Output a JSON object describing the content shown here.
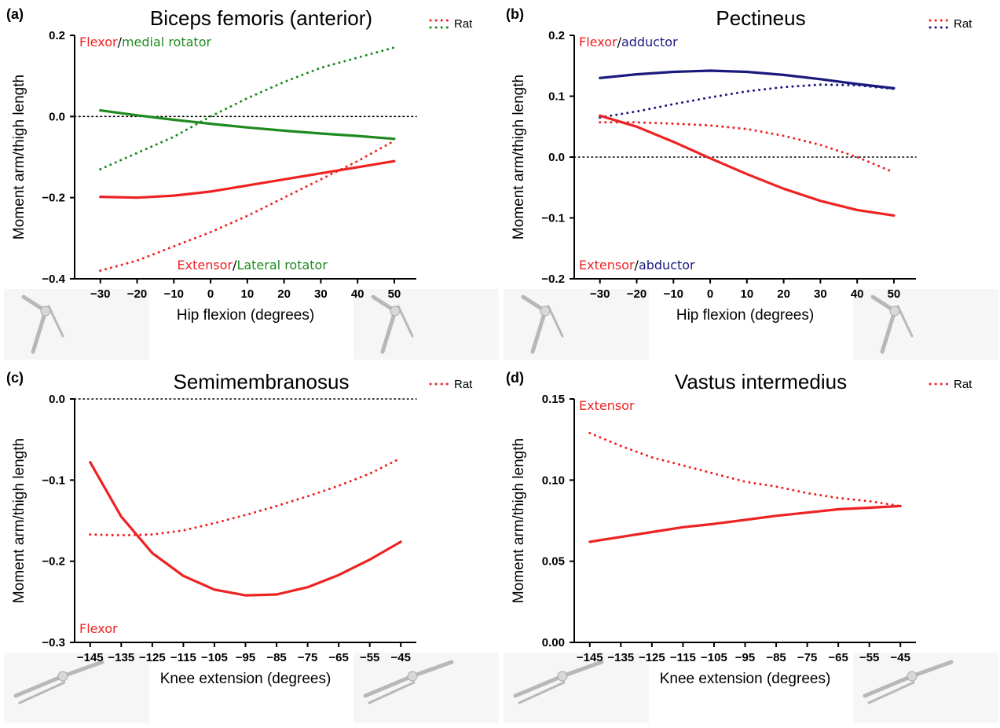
{
  "colors": {
    "red": "#ee2222",
    "green": "#1e8a1e",
    "navy": "#1a1a7e",
    "black": "#000000"
  },
  "chart_data": [
    {
      "id": "a",
      "type": "line",
      "panel_label": "(a)",
      "title": "Biceps femoris (anterior)",
      "xlabel": "Hip flexion (degrees)",
      "ylabel": "Moment arm/thigh length",
      "xlim": [
        -37,
        56
      ],
      "ylim": [
        -0.4,
        0.2
      ],
      "xticks": [
        -30,
        -20,
        -10,
        0,
        10,
        20,
        30,
        40,
        50
      ],
      "yticks": [
        -0.4,
        -0.2,
        0.0,
        0.2
      ],
      "ytick_labels": [
        "−0.4",
        "−0.2",
        "0.0",
        "0.2"
      ],
      "zero_line": true,
      "annotations": [
        {
          "position": "top-left",
          "parts": [
            {
              "text": "Flexor",
              "color": "#ee2222"
            },
            {
              "text": "/",
              "color": "#000000"
            },
            {
              "text": "medial rotator",
              "color": "#1e8a1e"
            }
          ]
        },
        {
          "position": "bottom",
          "parts": [
            {
              "text": "Extensor",
              "color": "#ee2222"
            },
            {
              "text": "/",
              "color": "#000000"
            },
            {
              "text": "Lateral rotator",
              "color": "#1e8a1e"
            }
          ]
        }
      ],
      "legend": {
        "label": "Rat",
        "position": "top-right",
        "colors": [
          "#ee2222",
          "#1e8a1e"
        ]
      },
      "series": [
        {
          "style": "solid",
          "color": "#1e8a1e",
          "x": [
            -30,
            -20,
            -10,
            0,
            10,
            20,
            30,
            40,
            50
          ],
          "y": [
            0.015,
            0.003,
            -0.008,
            -0.018,
            -0.027,
            -0.035,
            -0.042,
            -0.048,
            -0.055
          ]
        },
        {
          "style": "dotted",
          "color": "#1e8a1e",
          "x": [
            -30,
            -20,
            -10,
            0,
            10,
            20,
            30,
            40,
            50
          ],
          "y": [
            -0.13,
            -0.09,
            -0.05,
            0.0,
            0.045,
            0.085,
            0.12,
            0.145,
            0.17
          ]
        },
        {
          "style": "solid",
          "color": "#ee2222",
          "x": [
            -30,
            -20,
            -10,
            0,
            10,
            20,
            30,
            40,
            50
          ],
          "y": [
            -0.198,
            -0.2,
            -0.195,
            -0.185,
            -0.17,
            -0.155,
            -0.14,
            -0.125,
            -0.11
          ]
        },
        {
          "style": "dotted",
          "color": "#ee2222",
          "x": [
            -30,
            -20,
            -10,
            0,
            10,
            20,
            30,
            40,
            50
          ],
          "y": [
            -0.38,
            -0.355,
            -0.32,
            -0.285,
            -0.245,
            -0.2,
            -0.155,
            -0.11,
            -0.06
          ]
        }
      ]
    },
    {
      "id": "b",
      "type": "line",
      "panel_label": "(b)",
      "title": "Pectineus",
      "xlabel": "Hip flexion (degrees)",
      "ylabel": "Moment arm/thigh length",
      "xlim": [
        -37,
        56
      ],
      "ylim": [
        -0.2,
        0.2
      ],
      "xticks": [
        -30,
        -20,
        -10,
        0,
        10,
        20,
        30,
        40,
        50
      ],
      "yticks": [
        -0.2,
        -0.1,
        0.0,
        0.1,
        0.2
      ],
      "ytick_labels": [
        "−0.2",
        "−0.1",
        "0.0",
        "0.1",
        "0.2"
      ],
      "zero_line": true,
      "annotations": [
        {
          "position": "top-left",
          "parts": [
            {
              "text": "Flexor",
              "color": "#ee2222"
            },
            {
              "text": "/",
              "color": "#000000"
            },
            {
              "text": "adductor",
              "color": "#1a1a7e"
            }
          ]
        },
        {
          "position": "bottom-left",
          "parts": [
            {
              "text": "Extensor",
              "color": "#ee2222"
            },
            {
              "text": "/",
              "color": "#000000"
            },
            {
              "text": "abductor",
              "color": "#1a1a7e"
            }
          ]
        }
      ],
      "legend": {
        "label": "Rat",
        "position": "top-right",
        "colors": [
          "#ee2222",
          "#1a1a7e"
        ]
      },
      "series": [
        {
          "style": "solid",
          "color": "#1a1a7e",
          "x": [
            -30,
            -20,
            -10,
            0,
            10,
            20,
            30,
            40,
            50
          ],
          "y": [
            0.13,
            0.136,
            0.14,
            0.142,
            0.14,
            0.135,
            0.128,
            0.12,
            0.113
          ]
        },
        {
          "style": "dotted",
          "color": "#1a1a7e",
          "x": [
            -30,
            -20,
            -10,
            0,
            10,
            20,
            30,
            40,
            50
          ],
          "y": [
            0.065,
            0.075,
            0.087,
            0.098,
            0.108,
            0.115,
            0.119,
            0.118,
            0.112
          ]
        },
        {
          "style": "solid",
          "color": "#ee2222",
          "x": [
            -30,
            -20,
            -10,
            0,
            10,
            20,
            30,
            40,
            50
          ],
          "y": [
            0.068,
            0.05,
            0.025,
            -0.002,
            -0.028,
            -0.052,
            -0.072,
            -0.087,
            -0.096
          ]
        },
        {
          "style": "dotted",
          "color": "#ee2222",
          "x": [
            -30,
            -20,
            -10,
            0,
            10,
            20,
            30,
            40,
            50
          ],
          "y": [
            0.057,
            0.057,
            0.055,
            0.052,
            0.046,
            0.035,
            0.02,
            0.0,
            -0.025
          ]
        }
      ]
    },
    {
      "id": "c",
      "type": "line",
      "panel_label": "(c)",
      "title": "Semimembranosus",
      "xlabel": "Knee extension (degrees)",
      "ylabel": "Moment arm/thigh length",
      "xlim": [
        -150,
        -40
      ],
      "ylim": [
        -0.3,
        0.0
      ],
      "xticks": [
        -145,
        -135,
        -125,
        -115,
        -105,
        -95,
        -85,
        -75,
        -65,
        -55,
        -45
      ],
      "yticks": [
        -0.3,
        -0.2,
        -0.1,
        0.0
      ],
      "ytick_labels": [
        "−0.3",
        "−0.2",
        "−0.1",
        "0.0"
      ],
      "zero_line": true,
      "annotations": [
        {
          "position": "bottom-left",
          "parts": [
            {
              "text": "Flexor",
              "color": "#ee2222"
            }
          ]
        }
      ],
      "legend": {
        "label": "Rat",
        "position": "top-right",
        "colors": [
          "#ee2222"
        ]
      },
      "series": [
        {
          "style": "solid",
          "color": "#ee2222",
          "x": [
            -145,
            -135,
            -125,
            -115,
            -105,
            -95,
            -85,
            -75,
            -65,
            -55,
            -45
          ],
          "y": [
            -0.078,
            -0.145,
            -0.19,
            -0.218,
            -0.235,
            -0.242,
            -0.241,
            -0.232,
            -0.217,
            -0.198,
            -0.176
          ]
        },
        {
          "style": "dotted",
          "color": "#ee2222",
          "x": [
            -145,
            -135,
            -125,
            -115,
            -105,
            -95,
            -85,
            -75,
            -65,
            -55,
            -45
          ],
          "y": [
            -0.167,
            -0.168,
            -0.167,
            -0.162,
            -0.153,
            -0.143,
            -0.132,
            -0.12,
            -0.107,
            -0.092,
            -0.073
          ]
        }
      ]
    },
    {
      "id": "d",
      "type": "line",
      "panel_label": "(d)",
      "title": "Vastus intermedius",
      "xlabel": "Knee extension (degrees)",
      "ylabel": "Moment arm/thigh length",
      "xlim": [
        -150,
        -40
      ],
      "ylim": [
        0.0,
        0.15
      ],
      "xticks": [
        -145,
        -135,
        -125,
        -115,
        -105,
        -95,
        -85,
        -75,
        -65,
        -55,
        -45
      ],
      "yticks": [
        0.0,
        0.05,
        0.1,
        0.15
      ],
      "ytick_labels": [
        "0.00",
        "0.05",
        "0.10",
        "0.15"
      ],
      "zero_line": false,
      "annotations": [
        {
          "position": "top-left",
          "parts": [
            {
              "text": "Extensor",
              "color": "#ee2222"
            }
          ]
        }
      ],
      "legend": {
        "label": "Rat",
        "position": "top-right",
        "colors": [
          "#ee2222"
        ]
      },
      "series": [
        {
          "style": "solid",
          "color": "#ee2222",
          "x": [
            -145,
            -135,
            -125,
            -115,
            -105,
            -95,
            -85,
            -75,
            -65,
            -55,
            -45
          ],
          "y": [
            0.062,
            0.065,
            0.068,
            0.071,
            0.073,
            0.0755,
            0.078,
            0.08,
            0.082,
            0.083,
            0.084
          ]
        },
        {
          "style": "dotted",
          "color": "#ee2222",
          "x": [
            -145,
            -135,
            -125,
            -115,
            -105,
            -95,
            -85,
            -75,
            -65,
            -55,
            -45
          ],
          "y": [
            0.129,
            0.121,
            0.114,
            0.109,
            0.104,
            0.099,
            0.096,
            0.092,
            0.089,
            0.087,
            0.084
          ]
        }
      ]
    }
  ]
}
